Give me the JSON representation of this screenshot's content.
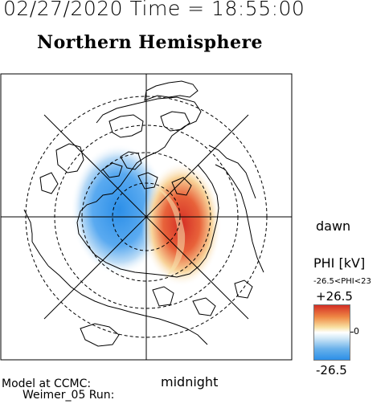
{
  "header": {
    "timestamp": "02/27/2020 Time = 18:55:00",
    "title": "Northern Hemisphere"
  },
  "map": {
    "projection": "polar (north pole centered)",
    "dawn_label": "dawn",
    "midnight_label": "midnight",
    "colors": {
      "positive": "#d42e25",
      "negative": "#2c8fe8",
      "zero": "#ffffff"
    }
  },
  "colorbar": {
    "title": "PHI [kV]",
    "range_text": "-26.5<PHI<23",
    "max_label": "+26.5",
    "zero_label": "0",
    "min_label": "-26.5"
  },
  "footer": {
    "model_line1": "Model at CCMC:",
    "model_line2": "Weimer_05 Run:"
  }
}
